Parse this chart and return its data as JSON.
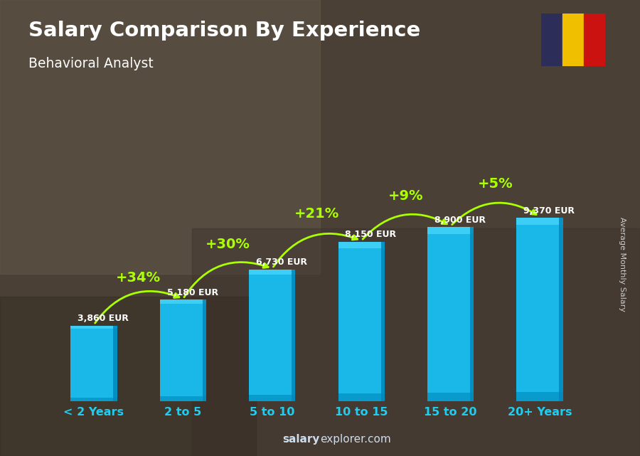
{
  "title": "Salary Comparison By Experience",
  "subtitle": "Behavioral Analyst",
  "ylabel": "Average Monthly Salary",
  "categories": [
    "< 2 Years",
    "2 to 5",
    "5 to 10",
    "10 to 15",
    "15 to 20",
    "20+ Years"
  ],
  "values": [
    3860,
    5180,
    6730,
    8150,
    8900,
    9370
  ],
  "labels": [
    "3,860 EUR",
    "5,180 EUR",
    "6,730 EUR",
    "8,150 EUR",
    "8,900 EUR",
    "9,370 EUR"
  ],
  "pct_labels": [
    "+34%",
    "+30%",
    "+21%",
    "+9%",
    "+5%"
  ],
  "bar_color_face": "#1ab8e8",
  "bar_color_dark": "#0088bb",
  "bar_color_highlight": "#55ddff",
  "bg_color": "#5a5040",
  "title_color": "#ffffff",
  "subtitle_color": "#ffffff",
  "label_color": "#ffffff",
  "pct_color": "#aaff00",
  "tick_color": "#22ccee",
  "watermark_bold": "salary",
  "watermark_rest": "explorer.com",
  "flag_colors": [
    "#2d2d5a",
    "#f0c000",
    "#cc1111"
  ],
  "bar_width": 0.52,
  "ylim_max": 13500
}
